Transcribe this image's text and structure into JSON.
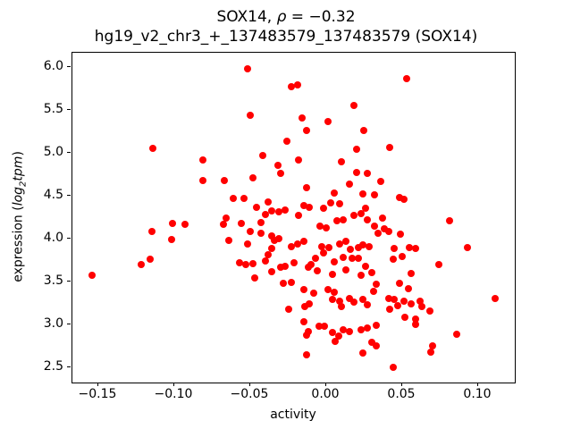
{
  "figure": {
    "title": {
      "line1_prefix": "SOX14, ",
      "line1_rho": "ρ",
      "line1_suffix": " = −0.32",
      "line2": "hg19_v2_chr3_+_137483579_137483579 (SOX14)"
    },
    "xlabel": "activity",
    "ylabel": {
      "prefix": "expression (",
      "italic_log": "log",
      "subscript": "2",
      "italic_tpm": "tpm",
      "suffix": ")"
    }
  },
  "chart_data": {
    "type": "scatter",
    "title": "SOX14, ρ = −0.32",
    "subtitle": "hg19_v2_chr3_+_137483579_137483579 (SOX14)",
    "xlabel": "activity",
    "ylabel": "expression (log2tpm)",
    "correlation_rho": -0.32,
    "marker_color": "#ff0000",
    "marker_diameter_px": 8,
    "grid": false,
    "legend": "none",
    "xlim": [
      -0.1672,
      0.1242
    ],
    "ylim": [
      2.321,
      6.167
    ],
    "xticks": {
      "values": [
        -0.15,
        -0.1,
        -0.05,
        0.0,
        0.05,
        0.1
      ],
      "labels": [
        "−0.15",
        "−0.10",
        "−0.05",
        "0.00",
        "0.05",
        "0.10"
      ]
    },
    "yticks": {
      "values": [
        2.5,
        3.0,
        3.5,
        4.0,
        4.5,
        5.0,
        5.5,
        6.0
      ],
      "labels": [
        "2.5",
        "3.0",
        "3.5",
        "4.0",
        "4.5",
        "5.0",
        "5.5",
        "6.0"
      ]
    },
    "points": [
      [
        -0.114,
        5.05
      ],
      [
        -0.081,
        4.92
      ],
      [
        -0.052,
        5.98
      ],
      [
        -0.023,
        5.77
      ],
      [
        -0.019,
        5.79
      ],
      [
        0.018,
        5.55
      ],
      [
        -0.05,
        5.44
      ],
      [
        -0.016,
        5.41
      ],
      [
        0.001,
        5.36
      ],
      [
        -0.013,
        5.26
      ],
      [
        0.025,
        5.26
      ],
      [
        -0.026,
        5.13
      ],
      [
        0.02,
        5.04
      ],
      [
        -0.042,
        4.97
      ],
      [
        -0.032,
        4.85
      ],
      [
        -0.018,
        4.92
      ],
      [
        0.01,
        4.9
      ],
      [
        0.053,
        5.86
      ],
      [
        0.042,
        5.06
      ],
      [
        -0.081,
        4.68
      ],
      [
        -0.067,
        4.68
      ],
      [
        -0.115,
        4.08
      ],
      [
        -0.101,
        4.18
      ],
      [
        -0.093,
        4.17
      ],
      [
        -0.102,
        3.99
      ],
      [
        -0.116,
        3.76
      ],
      [
        -0.122,
        3.7
      ],
      [
        -0.154,
        3.57
      ],
      [
        -0.048,
        4.71
      ],
      [
        -0.03,
        4.76
      ],
      [
        -0.013,
        4.59
      ],
      [
        0.02,
        4.77
      ],
      [
        0.015,
        4.63
      ],
      [
        0.024,
        4.52
      ],
      [
        0.005,
        4.53
      ],
      [
        0.009,
        4.41
      ],
      [
        -0.061,
        4.47
      ],
      [
        -0.054,
        4.47
      ],
      [
        -0.038,
        4.43
      ],
      [
        -0.046,
        4.36
      ],
      [
        -0.04,
        4.28
      ],
      [
        -0.036,
        4.32
      ],
      [
        -0.031,
        4.31
      ],
      [
        -0.027,
        4.33
      ],
      [
        -0.015,
        4.38
      ],
      [
        -0.011,
        4.36
      ],
      [
        -0.018,
        4.27
      ],
      [
        -0.002,
        4.35
      ],
      [
        0.003,
        4.42
      ],
      [
        -0.066,
        4.24
      ],
      [
        -0.068,
        4.17
      ],
      [
        -0.056,
        4.18
      ],
      [
        -0.043,
        4.19
      ],
      [
        -0.05,
        4.08
      ],
      [
        -0.043,
        4.06
      ],
      [
        -0.036,
        4.03
      ],
      [
        -0.034,
        3.98
      ],
      [
        -0.031,
        4.0
      ],
      [
        -0.064,
        3.98
      ],
      [
        -0.052,
        3.94
      ],
      [
        -0.038,
        3.81
      ],
      [
        -0.036,
        3.88
      ],
      [
        -0.04,
        3.74
      ],
      [
        -0.023,
        3.91
      ],
      [
        -0.019,
        3.94
      ],
      [
        -0.015,
        3.97
      ],
      [
        -0.01,
        3.7
      ],
      [
        -0.007,
        3.77
      ],
      [
        -0.004,
        4.14
      ],
      [
        0.0,
        4.12
      ],
      [
        0.007,
        4.21
      ],
      [
        0.011,
        4.22
      ],
      [
        0.018,
        4.27
      ],
      [
        0.023,
        4.29
      ],
      [
        0.026,
        4.35
      ],
      [
        0.027,
        4.22
      ],
      [
        -0.003,
        3.91
      ],
      [
        0.002,
        3.89
      ],
      [
        -0.002,
        3.83
      ],
      [
        0.009,
        3.94
      ],
      [
        0.013,
        3.97
      ],
      [
        0.016,
        3.87
      ],
      [
        0.021,
        3.89
      ],
      [
        0.024,
        3.93
      ],
      [
        0.028,
        3.91
      ],
      [
        0.011,
        3.78
      ],
      [
        0.017,
        3.77
      ],
      [
        0.021,
        3.77
      ],
      [
        -0.057,
        3.72
      ],
      [
        -0.053,
        3.7
      ],
      [
        -0.048,
        3.71
      ],
      [
        -0.027,
        3.68
      ],
      [
        -0.03,
        3.67
      ],
      [
        -0.021,
        3.72
      ],
      [
        -0.012,
        3.67
      ],
      [
        -0.006,
        3.62
      ],
      [
        0.004,
        3.58
      ],
      [
        0.013,
        3.63
      ],
      [
        0.023,
        3.57
      ],
      [
        0.026,
        3.68
      ],
      [
        0.005,
        3.73
      ],
      [
        -0.036,
        3.61
      ],
      [
        0.027,
        4.76
      ],
      [
        0.036,
        4.67
      ],
      [
        0.032,
        4.51
      ],
      [
        0.048,
        4.48
      ],
      [
        0.051,
        4.46
      ],
      [
        0.037,
        4.24
      ],
      [
        0.032,
        4.15
      ],
      [
        0.038,
        4.11
      ],
      [
        0.034,
        4.06
      ],
      [
        0.041,
        4.08
      ],
      [
        0.081,
        4.21
      ],
      [
        0.049,
        4.05
      ],
      [
        0.045,
        3.88
      ],
      [
        0.055,
        3.89
      ],
      [
        0.059,
        3.88
      ],
      [
        0.05,
        3.79
      ],
      [
        0.044,
        3.76
      ],
      [
        0.093,
        3.89
      ],
      [
        0.074,
        3.7
      ],
      [
        -0.047,
        3.54
      ],
      [
        -0.028,
        3.48
      ],
      [
        -0.023,
        3.49
      ],
      [
        -0.015,
        3.4
      ],
      [
        -0.008,
        3.36
      ],
      [
        0.001,
        3.4
      ],
      [
        0.005,
        3.37
      ],
      [
        -0.011,
        3.24
      ],
      [
        -0.014,
        3.21
      ],
      [
        -0.025,
        3.18
      ],
      [
        0.004,
        3.29
      ],
      [
        0.009,
        3.27
      ],
      [
        0.01,
        3.21
      ],
      [
        0.015,
        3.3
      ],
      [
        0.018,
        3.26
      ],
      [
        0.024,
        3.29
      ],
      [
        0.027,
        3.23
      ],
      [
        -0.015,
        3.03
      ],
      [
        -0.005,
        2.98
      ],
      [
        -0.001,
        2.98
      ],
      [
        -0.012,
        2.92
      ],
      [
        -0.013,
        2.87
      ],
      [
        0.004,
        2.9
      ],
      [
        0.008,
        2.86
      ],
      [
        0.011,
        2.94
      ],
      [
        0.015,
        2.92
      ],
      [
        0.023,
        2.94
      ],
      [
        0.006,
        2.8
      ],
      [
        -0.013,
        2.64
      ],
      [
        0.024,
        2.67
      ],
      [
        0.03,
        3.6
      ],
      [
        0.033,
        3.47
      ],
      [
        0.056,
        3.59
      ],
      [
        0.048,
        3.48
      ],
      [
        0.054,
        3.42
      ],
      [
        0.031,
        3.38
      ],
      [
        0.041,
        3.3
      ],
      [
        0.045,
        3.29
      ],
      [
        0.051,
        3.27
      ],
      [
        0.056,
        3.24
      ],
      [
        0.062,
        3.27
      ],
      [
        0.063,
        3.21
      ],
      [
        0.042,
        3.18
      ],
      [
        0.047,
        3.22
      ],
      [
        0.068,
        3.16
      ],
      [
        0.052,
        3.08
      ],
      [
        0.059,
        3.06
      ],
      [
        0.059,
        3.0
      ],
      [
        0.033,
        2.99
      ],
      [
        0.027,
        2.96
      ],
      [
        0.03,
        2.79
      ],
      [
        0.033,
        2.75
      ],
      [
        0.07,
        2.75
      ],
      [
        0.069,
        2.68
      ],
      [
        0.086,
        2.88
      ],
      [
        0.044,
        2.5
      ],
      [
        0.111,
        3.3
      ]
    ]
  }
}
